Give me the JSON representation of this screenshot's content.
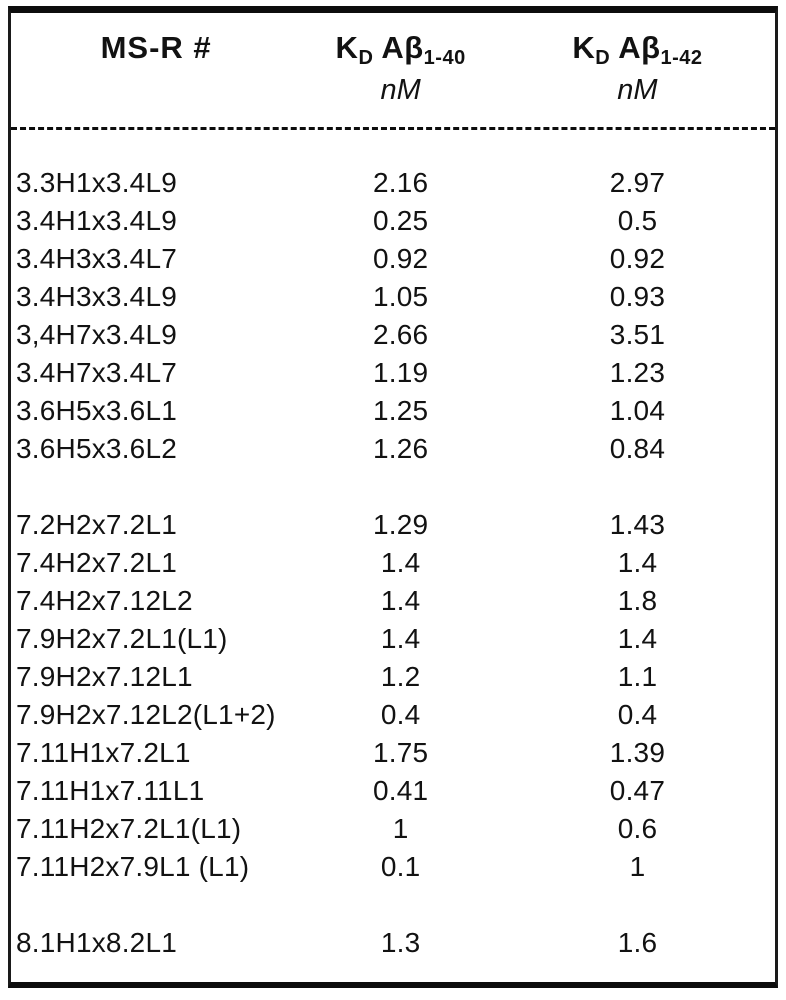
{
  "colors": {
    "background": "#ffffff",
    "text": "#121212",
    "border": "#0d0d0d"
  },
  "table": {
    "header": {
      "col1": "MS-R #",
      "col2": {
        "k": "K",
        "k_sub": "D",
        "ab": "Aβ",
        "ab_sub": "1-40",
        "unit": "nM"
      },
      "col3": {
        "k": "K",
        "k_sub": "D",
        "ab": "Aβ",
        "ab_sub": "1-42",
        "unit": "nM"
      }
    },
    "rows": [
      {
        "id": "3.3H1x3.4L9",
        "kd40": "2.16",
        "kd42": "2.97"
      },
      {
        "id": "3.4H1x3.4L9",
        "kd40": "0.25",
        "kd42": "0.5"
      },
      {
        "id": "3.4H3x3.4L7",
        "kd40": "0.92",
        "kd42": "0.92"
      },
      {
        "id": "3.4H3x3.4L9",
        "kd40": "1.05",
        "kd42": "0.93"
      },
      {
        "id": "3,4H7x3.4L9",
        "kd40": "2.66",
        "kd42": "3.51"
      },
      {
        "id": "3.4H7x3.4L7",
        "kd40": "1.19",
        "kd42": "1.23"
      },
      {
        "id": "3.6H5x3.6L1",
        "kd40": "1.25",
        "kd42": "1.04"
      },
      {
        "id": "3.6H5x3.6L2",
        "kd40": "1.26",
        "kd42": "0.84"
      },
      {
        "spacer": true
      },
      {
        "id": "7.2H2x7.2L1",
        "kd40": "1.29",
        "kd42": "1.43"
      },
      {
        "id": "7.4H2x7.2L1",
        "kd40": "1.4",
        "kd42": "1.4"
      },
      {
        "id": "7.4H2x7.12L2",
        "kd40": "1.4",
        "kd42": "1.8"
      },
      {
        "id": "7.9H2x7.2L1(L1)",
        "kd40": "1.4",
        "kd42": "1.4"
      },
      {
        "id": "7.9H2x7.12L1",
        "kd40": "1.2",
        "kd42": "1.1"
      },
      {
        "id": "7.9H2x7.12L2(L1+2)",
        "kd40": "0.4",
        "kd42": "0.4"
      },
      {
        "id": "7.11H1x7.2L1",
        "kd40": "1.75",
        "kd42": "1.39"
      },
      {
        "id": "7.11H1x7.11L1",
        "kd40": "0.41",
        "kd42": "0.47"
      },
      {
        "id": "7.11H2x7.2L1(L1)",
        "kd40": "1",
        "kd42": "0.6"
      },
      {
        "id": "7.11H2x7.9L1 (L1)",
        "kd40": "0.1",
        "kd42": "1"
      },
      {
        "spacer": true
      },
      {
        "id": "8.1H1x8.2L1",
        "kd40": "1.3",
        "kd42": "1.6"
      }
    ]
  }
}
